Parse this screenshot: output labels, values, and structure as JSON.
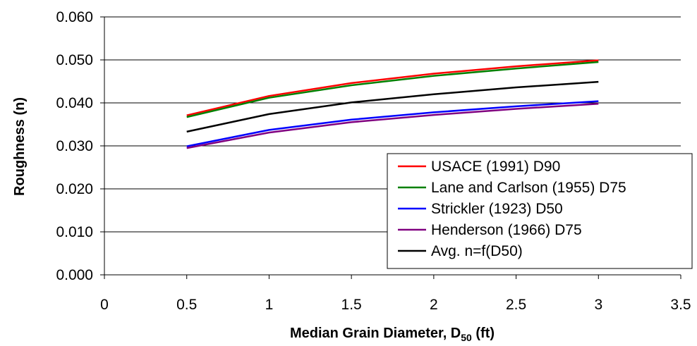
{
  "chart_data": {
    "type": "line",
    "title": "",
    "xlabel": "Median Grain Diameter, D50 (ft)",
    "xlabel_main": "Median Grain Diameter, D",
    "xlabel_sub": "50",
    "xlabel_suffix": " (ft)",
    "ylabel": "Roughness (n)",
    "xlim": [
      0,
      3.5
    ],
    "ylim": [
      0,
      0.06
    ],
    "x_ticks": [
      "0",
      "0.5",
      "1",
      "1.5",
      "2",
      "2.5",
      "3",
      "3.5"
    ],
    "y_ticks": [
      "0.000",
      "0.010",
      "0.020",
      "0.030",
      "0.040",
      "0.050",
      "0.060"
    ],
    "grid": "horizontal",
    "legend_position": "bottom-right",
    "x": [
      0.5,
      1,
      1.5,
      2,
      2.5,
      3
    ],
    "series": [
      {
        "name": "USACE (1991) D90",
        "color": "#ff0000",
        "values": [
          0.0371,
          0.0416,
          0.0446,
          0.0468,
          0.0485,
          0.0499
        ]
      },
      {
        "name": "Lane and Carlson (1955) D75",
        "color": "#008000",
        "values": [
          0.0367,
          0.0412,
          0.0441,
          0.0463,
          0.048,
          0.0495
        ]
      },
      {
        "name": "Strickler (1923) D50",
        "color": "#0000ff",
        "values": [
          0.0299,
          0.0337,
          0.0361,
          0.0378,
          0.0392,
          0.0404
        ]
      },
      {
        "name": "Henderson (1966) D75",
        "color": "#800080",
        "values": [
          0.0295,
          0.0331,
          0.0355,
          0.0372,
          0.0386,
          0.0398
        ]
      },
      {
        "name": "Avg. n=f(D50)",
        "color": "#000000",
        "values": [
          0.0333,
          0.0374,
          0.0401,
          0.042,
          0.0436,
          0.0449
        ]
      }
    ]
  }
}
